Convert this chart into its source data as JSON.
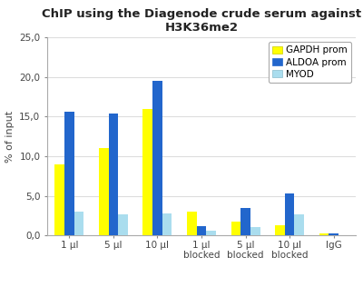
{
  "title_line1": "ChIP using the Diagenode crude serum against",
  "title_line2": "H3K36me2",
  "ylabel": "% of input",
  "categories": [
    "1 µl",
    "5 µl",
    "10 µl",
    "1 µl\nblocked",
    "5 µl\nblocked",
    "10 µl\nblocked",
    "IgG"
  ],
  "series": [
    {
      "name": "GAPDH prom",
      "color": "#FFFF00",
      "edge_color": "#CCCC00",
      "values": [
        8.9,
        11.0,
        15.9,
        3.0,
        1.7,
        1.3,
        0.3
      ]
    },
    {
      "name": "ALDOA prom",
      "color": "#2266CC",
      "edge_color": "#2266CC",
      "values": [
        15.6,
        15.35,
        19.5,
        1.2,
        3.5,
        5.3,
        0.2
      ]
    },
    {
      "name": "MYOD",
      "color": "#AADDEE",
      "edge_color": "#88BBCC",
      "values": [
        3.0,
        2.6,
        2.8,
        0.55,
        1.1,
        2.7,
        0.05
      ]
    }
  ],
  "ylim": [
    0,
    25
  ],
  "yticks": [
    0.0,
    5.0,
    10.0,
    15.0,
    20.0,
    25.0
  ],
  "ytick_labels": [
    "0,0",
    "5,0",
    "10,0",
    "15,0",
    "20,0",
    "25,0"
  ],
  "bar_width": 0.22,
  "grid_color": "#DDDDDD",
  "background_color": "#FFFFFF",
  "legend_border_color": "#AAAAAA",
  "title_fontsize": 9.5,
  "axis_fontsize": 8,
  "tick_fontsize": 7.5,
  "legend_fontsize": 7.5
}
